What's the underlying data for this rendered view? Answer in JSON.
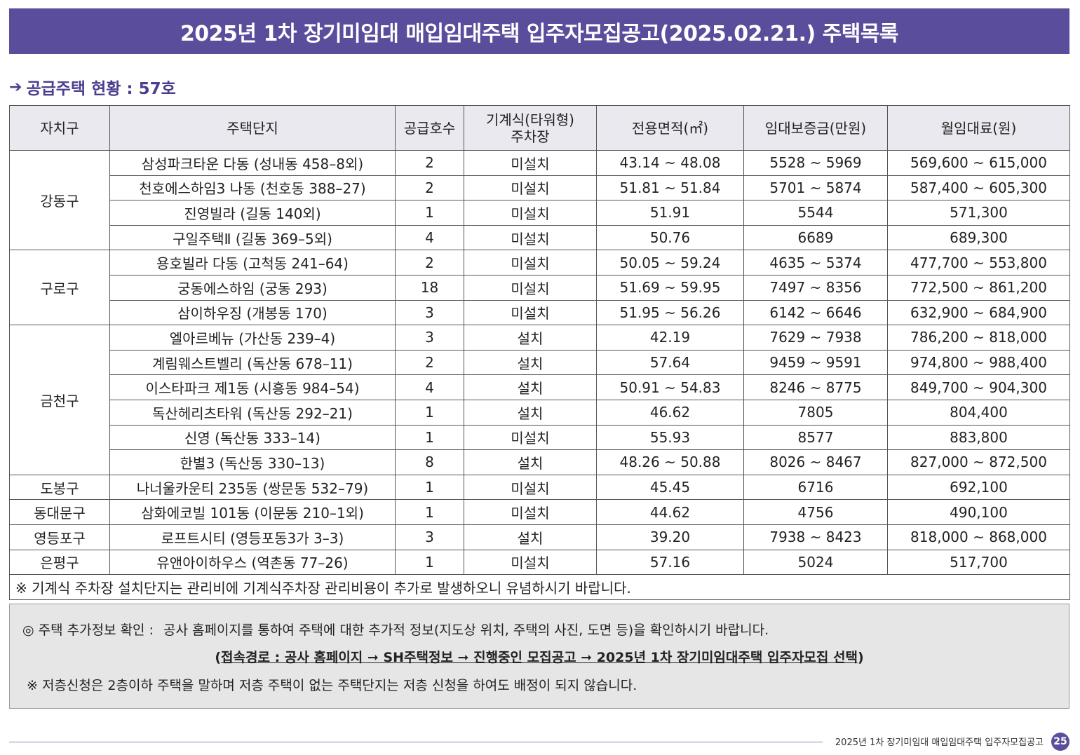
{
  "banner": {
    "title": "2025년 1차 장기미임대 매입임대주택 입주자모집공고(2025.02.21.) 주택목록"
  },
  "supply": {
    "arrow": "➔",
    "text": "공급주택 현황 : 57호"
  },
  "table": {
    "headers": {
      "district": "자치구",
      "complex": "주택단지",
      "units": "공급호수",
      "parking_line1": "기계식(타워형)",
      "parking_line2": "주차장",
      "area": "전용면적(㎡)",
      "deposit": "임대보증금(만원)",
      "rent": "월임대료(원)"
    },
    "groups": [
      {
        "district": "강동구",
        "rows": [
          {
            "complex": "삼성파크타운 다동 (성내동 458–8외)",
            "units": "2",
            "parking": "미설치",
            "area": "43.14 ~ 48.08",
            "deposit": "5528 ~ 5969",
            "rent": "569,600 ~ 615,000"
          },
          {
            "complex": "천호에스하임3 나동 (천호동 388–27)",
            "units": "2",
            "parking": "미설치",
            "area": "51.81 ~ 51.84",
            "deposit": "5701 ~ 5874",
            "rent": "587,400 ~ 605,300"
          },
          {
            "complex": "진영빌라 (길동 140외)",
            "units": "1",
            "parking": "미설치",
            "area": "51.91",
            "deposit": "5544",
            "rent": "571,300"
          },
          {
            "complex": "구일주택Ⅱ (길동 369–5외)",
            "units": "4",
            "parking": "미설치",
            "area": "50.76",
            "deposit": "6689",
            "rent": "689,300"
          }
        ]
      },
      {
        "district": "구로구",
        "rows": [
          {
            "complex": "용호빌라 다동 (고척동 241–64)",
            "units": "2",
            "parking": "미설치",
            "area": "50.05 ~ 59.24",
            "deposit": "4635 ~ 5374",
            "rent": "477,700 ~ 553,800"
          },
          {
            "complex": "궁동에스하임 (궁동 293)",
            "units": "18",
            "parking": "미설치",
            "area": "51.69 ~ 59.95",
            "deposit": "7497 ~ 8356",
            "rent": "772,500 ~ 861,200"
          },
          {
            "complex": "삼이하우징 (개봉동 170)",
            "units": "3",
            "parking": "미설치",
            "area": "51.95 ~ 56.26",
            "deposit": "6142 ~ 6646",
            "rent": "632,900 ~ 684,900"
          }
        ]
      },
      {
        "district": "금천구",
        "rows": [
          {
            "complex": "엘아르베뉴 (가산동 239–4)",
            "units": "3",
            "parking": "설치",
            "area": "42.19",
            "deposit": "7629 ~ 7938",
            "rent": "786,200 ~ 818,000"
          },
          {
            "complex": "계림웨스트벨리 (독산동 678–11)",
            "units": "2",
            "parking": "설치",
            "area": "57.64",
            "deposit": "9459 ~ 9591",
            "rent": "974,800 ~ 988,400"
          },
          {
            "complex": "이스타파크 제1동 (시흥동 984–54)",
            "units": "4",
            "parking": "설치",
            "area": "50.91 ~ 54.83",
            "deposit": "8246 ~ 8775",
            "rent": "849,700 ~ 904,300"
          },
          {
            "complex": "독산헤리츠타워 (독산동 292–21)",
            "units": "1",
            "parking": "설치",
            "area": "46.62",
            "deposit": "7805",
            "rent": "804,400"
          },
          {
            "complex": "신영 (독산동 333–14)",
            "units": "1",
            "parking": "미설치",
            "area": "55.93",
            "deposit": "8577",
            "rent": "883,800"
          },
          {
            "complex": "한별3 (독산동 330–13)",
            "units": "8",
            "parking": "설치",
            "area": "48.26 ~ 50.88",
            "deposit": "8026 ~ 8467",
            "rent": "827,000 ~ 872,500"
          }
        ]
      },
      {
        "district": "도봉구",
        "rows": [
          {
            "complex": "나너울카운티 235동 (쌍문동 532–79)",
            "units": "1",
            "parking": "미설치",
            "area": "45.45",
            "deposit": "6716",
            "rent": "692,100"
          }
        ]
      },
      {
        "district": "동대문구",
        "rows": [
          {
            "complex": "삼화에코빌 101동 (이문동 210–1외)",
            "units": "1",
            "parking": "미설치",
            "area": "44.62",
            "deposit": "4756",
            "rent": "490,100"
          }
        ]
      },
      {
        "district": "영등포구",
        "rows": [
          {
            "complex": "로프트시티 (영등포동3가 3–3)",
            "units": "3",
            "parking": "설치",
            "area": "39.20",
            "deposit": "7938 ~ 8423",
            "rent": "818,000 ~ 868,000"
          }
        ]
      },
      {
        "district": "은평구",
        "rows": [
          {
            "complex": "유앤아이하우스 (역촌동 77–26)",
            "units": "1",
            "parking": "미설치",
            "area": "57.16",
            "deposit": "5024",
            "rent": "517,700"
          }
        ]
      }
    ],
    "footnote": "※ 기계식 주차장 설치단지는 관리비에 기계식주차장 관리비용이 추가로 발생하오니 유념하시기 바랍니다."
  },
  "info": {
    "line1_label": "◎ 주택 추가정보 확인 :",
    "line1_text": "공사 홈페이지를 통하여 주택에 대한 추가적 정보(지도상 위치, 주택의 사진, 도면 등)을 확인하시기 바랍니다.",
    "line2_open": "(",
    "line2_path": "접속경로 : 공사 홈페이지 ➞ SH주택정보 ➞ 진행중인 모집공고 ➞ 2025년 1차 장기미임대주택 입주자모집 선택",
    "line2_close": ")",
    "line3": "※ 저층신청은 2층이하 주택을 말하며 저층 주택이 없는 주택단지는 저층 신청을 하여도 배정이 되지 않습니다."
  },
  "footer": {
    "text": "2025년 1차 장기미임대 매입임대주택 입주자모집공고",
    "page": "25"
  },
  "colors": {
    "accent": "#5a4e9c",
    "header_bg": "#e9e9ef",
    "info_bg": "#e6e6e6"
  }
}
